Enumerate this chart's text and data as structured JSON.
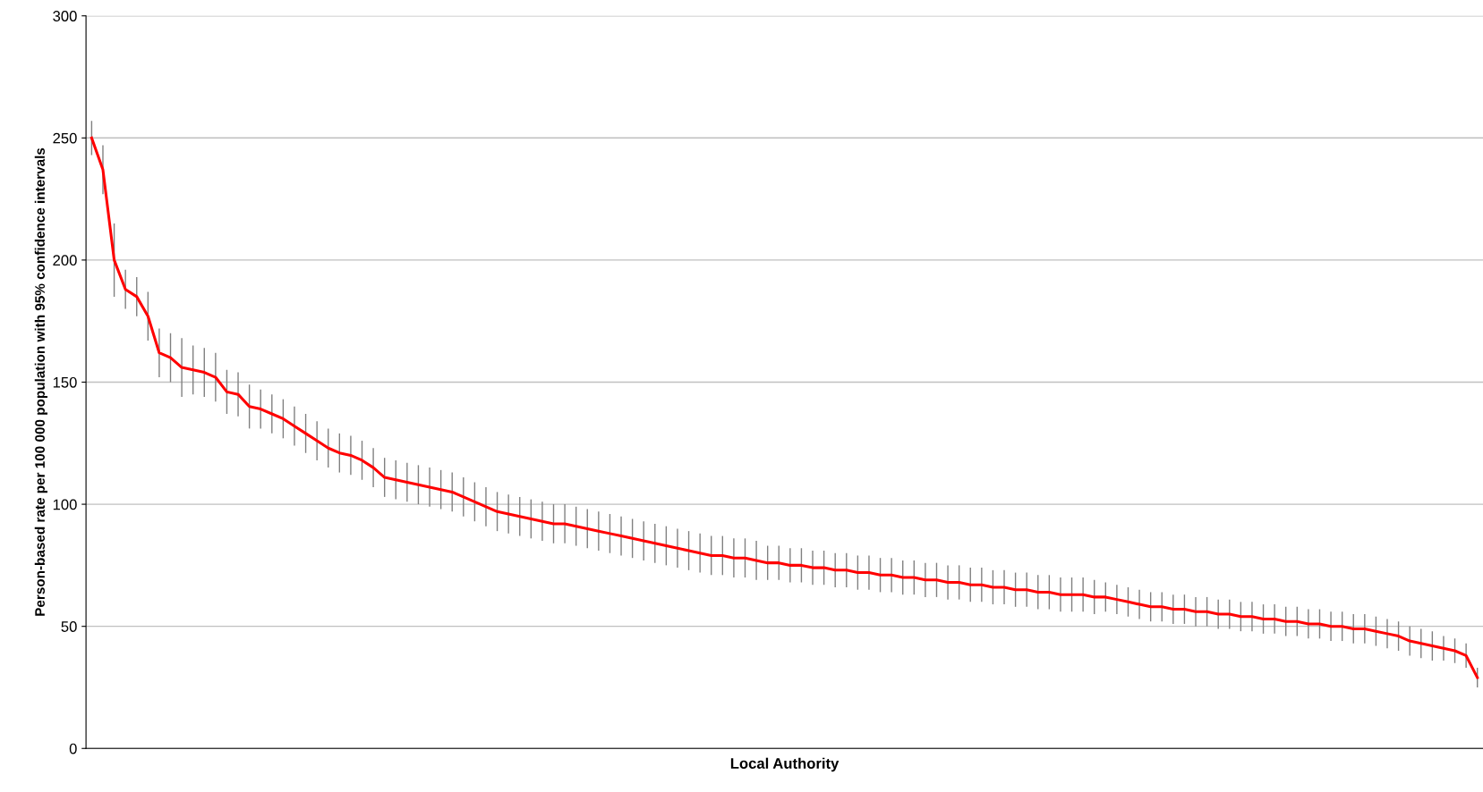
{
  "chart_data": {
    "type": "line",
    "xlabel": "Local Authority",
    "ylabel": "Person-based rate per 100 000 population with 95% confidence intervals",
    "categories": [
      null,
      null,
      null,
      null,
      null,
      null,
      null,
      null,
      null,
      null,
      null,
      null,
      null,
      null,
      null,
      null,
      null,
      null,
      null,
      null,
      null,
      null,
      null,
      null,
      null,
      null,
      null,
      null,
      null,
      null,
      null,
      null,
      null,
      null,
      null,
      null,
      null,
      null,
      null,
      null,
      null,
      null,
      null,
      null,
      null,
      null,
      null,
      null,
      null,
      null,
      null,
      null,
      null,
      null,
      null,
      null,
      null,
      null,
      null,
      null,
      null,
      null,
      null,
      null,
      null,
      null,
      null,
      null,
      null,
      null,
      null,
      null,
      null,
      null,
      null,
      null,
      null,
      null,
      null,
      null,
      null,
      null,
      null,
      null,
      null,
      null,
      null,
      null,
      null,
      null,
      null,
      null,
      null,
      null,
      null,
      null,
      null,
      null,
      null,
      null,
      null,
      null,
      null,
      null,
      null,
      null,
      null,
      null,
      null,
      null,
      null,
      null,
      null,
      null,
      null,
      null,
      null,
      null,
      null,
      null,
      null,
      null,
      null,
      null
    ],
    "series": [
      {
        "color": "#ff0000",
        "values": [
          250,
          237,
          200,
          188,
          185,
          177,
          162,
          160,
          156,
          155,
          154,
          152,
          146,
          145,
          140,
          139,
          137,
          135,
          132,
          129,
          126,
          123,
          121,
          120,
          118,
          115,
          111,
          110,
          109,
          108,
          107,
          106,
          105,
          103,
          101,
          99,
          97,
          96,
          95,
          94,
          93,
          92,
          92,
          91,
          90,
          89,
          88,
          87,
          86,
          85,
          84,
          83,
          82,
          81,
          80,
          79,
          79,
          78,
          78,
          77,
          76,
          76,
          75,
          75,
          74,
          74,
          73,
          73,
          72,
          72,
          71,
          71,
          70,
          70,
          69,
          69,
          68,
          68,
          67,
          67,
          66,
          66,
          65,
          65,
          64,
          64,
          63,
          63,
          63,
          62,
          62,
          61,
          60,
          59,
          58,
          58,
          57,
          57,
          56,
          56,
          55,
          55,
          54,
          54,
          53,
          53,
          52,
          52,
          51,
          51,
          50,
          50,
          49,
          49,
          48,
          47,
          46,
          44,
          43,
          42,
          41,
          40,
          38,
          29
        ],
        "errors": [
          7,
          10,
          15,
          8,
          8,
          10,
          10,
          10,
          12,
          10,
          10,
          10,
          9,
          9,
          9,
          8,
          8,
          8,
          8,
          8,
          8,
          8,
          8,
          8,
          8,
          8,
          8,
          8,
          8,
          8,
          8,
          8,
          8,
          8,
          8,
          8,
          8,
          8,
          8,
          8,
          8,
          8,
          8,
          8,
          8,
          8,
          8,
          8,
          8,
          8,
          8,
          8,
          8,
          8,
          8,
          8,
          8,
          8,
          8,
          8,
          7,
          7,
          7,
          7,
          7,
          7,
          7,
          7,
          7,
          7,
          7,
          7,
          7,
          7,
          7,
          7,
          7,
          7,
          7,
          7,
          7,
          7,
          7,
          7,
          7,
          7,
          7,
          7,
          7,
          7,
          6,
          6,
          6,
          6,
          6,
          6,
          6,
          6,
          6,
          6,
          6,
          6,
          6,
          6,
          6,
          6,
          6,
          6,
          6,
          6,
          6,
          6,
          6,
          6,
          6,
          6,
          6,
          6,
          6,
          6,
          5,
          5,
          5,
          4
        ]
      }
    ],
    "ylim": [
      0,
      300
    ],
    "yticks": [
      0,
      50,
      100,
      150,
      200,
      250,
      300
    ],
    "grid": "y",
    "marker": "none",
    "line_style": "solid"
  }
}
